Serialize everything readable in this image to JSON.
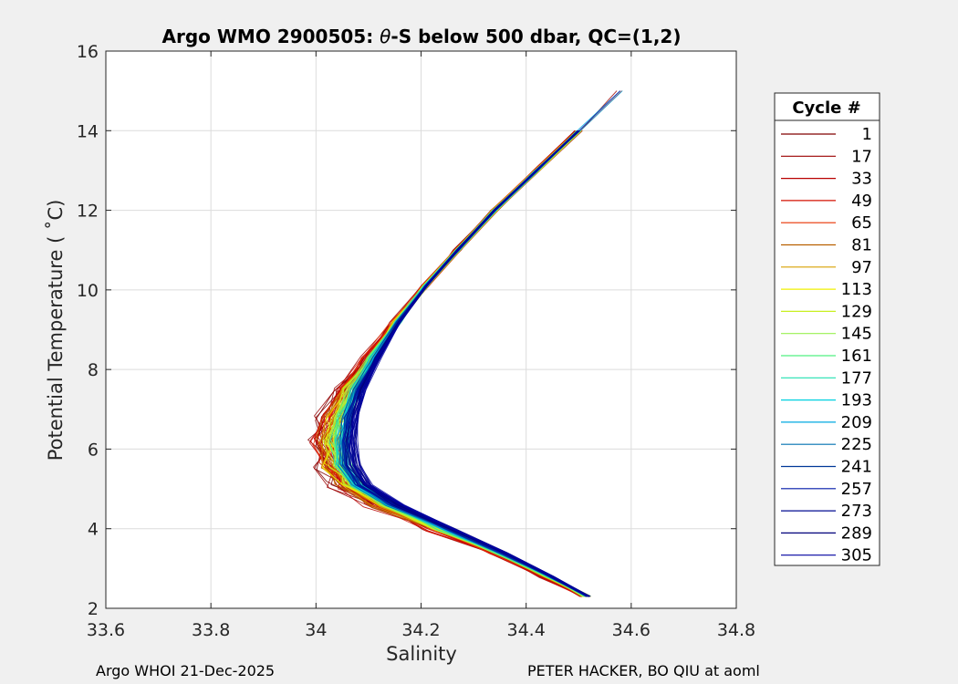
{
  "chart_data": {
    "type": "line",
    "title_prefix": "Argo WMO 2900505: ",
    "title_theta": "θ",
    "title_suffix": "-S below 500 dbar,  QC=(1,2)",
    "xlabel": "Salinity",
    "ylabel": "Potential Temperature ( ˚C)",
    "xlim": [
      33.6,
      34.8
    ],
    "ylim": [
      2,
      16
    ],
    "x_ticks": [
      33.6,
      33.8,
      34,
      34.2,
      34.4,
      34.6,
      34.8
    ],
    "x_tick_labels": [
      "33.6",
      "33.8",
      "34",
      "34.2",
      "34.4",
      "34.6",
      "34.8"
    ],
    "y_ticks": [
      2,
      4,
      6,
      8,
      10,
      12,
      14,
      16
    ],
    "y_tick_labels": [
      "2",
      "4",
      "6",
      "8",
      "10",
      "12",
      "14",
      "16"
    ],
    "grid": true,
    "legend_title": "Cycle #",
    "legend_position": "right",
    "series": [
      {
        "name": "1",
        "color": "#800000"
      },
      {
        "name": "17",
        "color": "#9c0000"
      },
      {
        "name": "33",
        "color": "#b80000"
      },
      {
        "name": "49",
        "color": "#d41000"
      },
      {
        "name": "65",
        "color": "#e83000"
      },
      {
        "name": "81",
        "color": "#b86000"
      },
      {
        "name": "97",
        "color": "#d8a000"
      },
      {
        "name": "113",
        "color": "#f0f000"
      },
      {
        "name": "129",
        "color": "#c8f020"
      },
      {
        "name": "145",
        "color": "#98f050"
      },
      {
        "name": "161",
        "color": "#50f080"
      },
      {
        "name": "177",
        "color": "#20e0b0"
      },
      {
        "name": "193",
        "color": "#00d0e0"
      },
      {
        "name": "209",
        "color": "#00a8e0"
      },
      {
        "name": "225",
        "color": "#0070b0"
      },
      {
        "name": "241",
        "color": "#003898"
      },
      {
        "name": "257",
        "color": "#0018a8"
      },
      {
        "name": "273",
        "color": "#000a90"
      },
      {
        "name": "289",
        "color": "#00007a"
      },
      {
        "name": "305",
        "color": "#0000a0"
      }
    ],
    "base_curve": {
      "s": [
        34.52,
        34.45,
        34.36,
        34.26,
        34.16,
        34.1,
        34.075,
        34.07,
        34.075,
        34.09,
        34.12,
        34.16,
        34.21,
        34.27,
        34.34,
        34.42,
        34.5,
        34.58
      ],
      "t": [
        2.3,
        2.8,
        3.4,
        4.0,
        4.6,
        5.1,
        5.6,
        6.2,
        6.8,
        7.5,
        8.3,
        9.2,
        10.1,
        11.0,
        12.0,
        13.0,
        14.0,
        15.0
      ]
    }
  },
  "footer": {
    "left": "Argo WHOI 21-Dec-2025",
    "right": "PETER HACKER, BO QIU at aoml"
  }
}
